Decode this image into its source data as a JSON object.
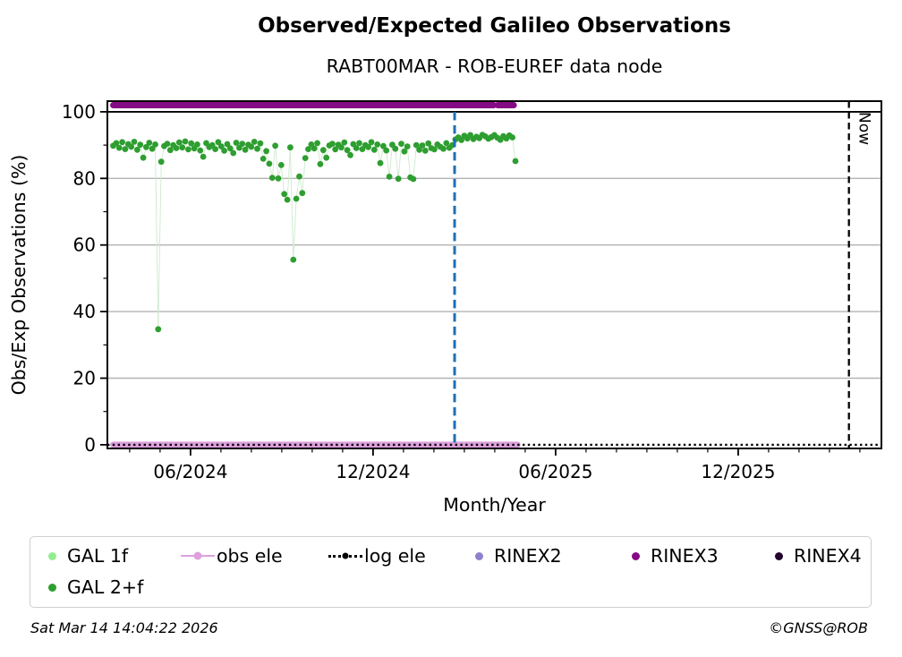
{
  "title": "Observed/Expected Galileo Observations",
  "subtitle": "RABT00MAR - ROB-EUREF data node",
  "footer": {
    "timestamp": "Sat Mar 14 14:04:22 2026",
    "copyright": "©GNSS@ROB"
  },
  "legend": {
    "items": [
      {
        "label": "GAL 1f",
        "color": "#90ee90",
        "marker": "dot"
      },
      {
        "label": "obs ele",
        "color": "#dda0dd",
        "marker": "line-dot"
      },
      {
        "label": "log ele",
        "color": "#000000",
        "marker": "dotted-line-dot"
      },
      {
        "label": "RINEX2",
        "color": "#9080cc",
        "marker": "dot"
      },
      {
        "label": "RINEX3",
        "color": "#850b85",
        "marker": "dot"
      },
      {
        "label": "RINEX4",
        "color": "#23052e",
        "marker": "dot"
      },
      {
        "label": "GAL 2+f",
        "color": "#2e9e30",
        "marker": "dot"
      }
    ]
  },
  "chart_data": {
    "type": "scatter",
    "title": "Observed/Expected Galileo Observations",
    "subtitle": "RABT00MAR - ROB-EUREF data node",
    "xlabel": "Month/Year",
    "ylabel": "Obs/Exp Observations (%)",
    "x_domain": [
      2024.189,
      2026.309
    ],
    "y_domain": [
      -1.1,
      103.2
    ],
    "x_ticks": [
      {
        "t": 2024.4167,
        "label": "06/2024"
      },
      {
        "t": 2024.9167,
        "label": "12/2024"
      },
      {
        "t": 2025.4167,
        "label": "06/2025"
      },
      {
        "t": 2025.9167,
        "label": "12/2025"
      }
    ],
    "x_minor": {
      "start": 2024.25,
      "step": 0.0833333,
      "end": 2026.3
    },
    "y_ticks": [
      {
        "v": 0,
        "label": "0"
      },
      {
        "v": 20,
        "label": "20"
      },
      {
        "v": 40,
        "label": "40"
      },
      {
        "v": 60,
        "label": "60"
      },
      {
        "v": 80,
        "label": "80"
      },
      {
        "v": 100,
        "label": "100"
      }
    ],
    "y_minor": [
      10,
      30,
      50,
      70,
      90
    ],
    "gray_gridlines": [
      20,
      40,
      60,
      80
    ],
    "black_ref_line": 100,
    "event_line": {
      "t": 2025.14,
      "color": "#1f6fb4"
    },
    "now_line": {
      "t": 2026.22,
      "label": "Now",
      "color": "#000000"
    },
    "series": [
      {
        "name": "GAL 2+f",
        "type": "scatter",
        "color": "#2e9e30",
        "connector_color": "#cfe9cf",
        "marker_r": 3.4,
        "start": 2024.205,
        "step": 0.00822,
        "values": [
          89.8,
          90.6,
          89.2,
          90.9,
          88.8,
          90.3,
          89.5,
          91.0,
          88.6,
          90.1,
          86.2,
          89.4,
          90.7,
          88.9,
          90.2,
          34.7,
          85.0,
          89.7,
          90.4,
          88.5,
          90.0,
          89.1,
          90.8,
          89.3,
          91.1,
          88.7,
          90.5,
          89.0,
          90.2,
          88.4,
          86.5,
          90.6,
          89.4,
          90.0,
          88.8,
          90.9,
          89.6,
          88.3,
          90.3,
          89.0,
          87.6,
          90.7,
          89.2,
          90.4,
          88.6,
          90.1,
          89.5,
          91.0,
          88.9,
          90.5,
          85.9,
          88.2,
          84.4,
          80.2,
          89.8,
          80.0,
          84.0,
          75.3,
          73.6,
          89.3,
          55.6,
          73.9,
          80.6,
          75.6,
          86.1,
          88.8,
          90.2,
          89.0,
          90.6,
          84.3,
          88.5,
          86.2,
          89.9,
          90.4,
          88.7,
          90.1,
          89.3,
          90.8,
          88.5,
          87.0,
          90.3,
          89.1,
          90.6,
          88.8,
          90.0,
          89.4,
          90.9,
          88.6,
          90.2,
          84.6,
          89.7,
          88.4,
          80.5,
          90.1,
          88.9,
          79.9,
          90.4,
          88.1,
          89.6,
          80.3,
          79.8,
          90.0,
          88.6,
          89.9,
          88.3,
          90.5,
          89.1,
          88.7,
          90.2,
          89.5,
          88.9,
          90.6,
          89.2,
          90.0,
          91.7,
          92.3,
          91.5,
          92.8,
          92.0,
          93.0,
          91.8,
          92.5,
          92.1,
          93.1,
          92.6,
          91.9,
          92.4,
          93.0,
          92.2,
          91.6,
          92.7,
          92.0,
          92.9,
          92.3,
          85.2
        ]
      },
      {
        "name": "RINEX3",
        "type": "band",
        "color": "#850b85",
        "y": 102,
        "width": 7,
        "segments": [
          [
            2024.205,
            2025.247
          ],
          [
            2025.258,
            2025.302
          ]
        ]
      },
      {
        "name": "obs ele",
        "type": "band",
        "color": "#dda0dd",
        "y": 0,
        "width": 7,
        "segments": [
          [
            2024.205,
            2025.312
          ]
        ]
      },
      {
        "name": "log ele",
        "type": "dotted",
        "color": "#000000",
        "y": 0,
        "segments": [
          [
            2024.189,
            2026.309
          ]
        ]
      },
      {
        "name": "GAL 1f",
        "type": "scatter",
        "color": "#90ee90",
        "values": []
      },
      {
        "name": "RINEX2",
        "type": "scatter",
        "color": "#9080cc",
        "values": []
      },
      {
        "name": "RINEX4",
        "type": "scatter",
        "color": "#23052e",
        "values": []
      }
    ]
  }
}
